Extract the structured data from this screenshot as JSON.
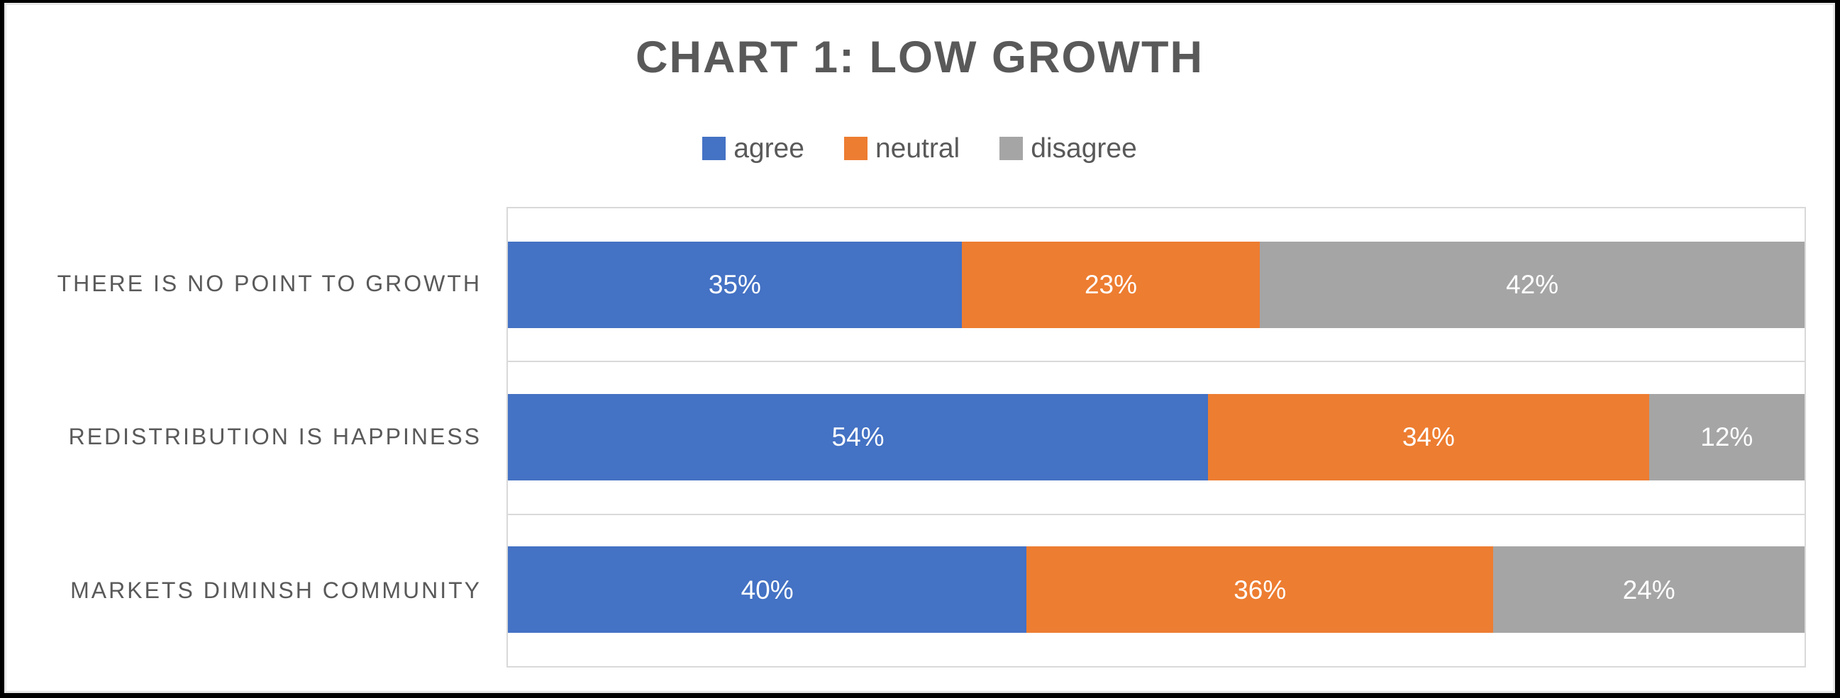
{
  "chart_data": {
    "type": "bar",
    "variant": "stacked-horizontal",
    "title": "CHART 1: LOW GROWTH",
    "categories": [
      "THERE IS NO POINT TO GROWTH",
      "REDISTRIBUTION IS HAPPINESS",
      "MARKETS DIMINSH COMMUNITY"
    ],
    "series": [
      {
        "name": "agree",
        "color": "#4472C4",
        "values": [
          35,
          54,
          40
        ],
        "labels": [
          "35%",
          "54%",
          "40%"
        ]
      },
      {
        "name": "neutral",
        "color": "#ED7D31",
        "values": [
          23,
          34,
          36
        ],
        "labels": [
          "23%",
          "34%",
          "36%"
        ]
      },
      {
        "name": "disagree",
        "color": "#A5A5A5",
        "values": [
          42,
          12,
          24
        ],
        "labels": [
          "42%",
          "12%",
          "24%"
        ]
      }
    ],
    "unit": "%",
    "xlim": [
      0,
      100
    ],
    "legend_position": "top-center",
    "grid": "category-separators-only",
    "value_axis_labels_visible": false
  },
  "colors": {
    "title_text": "#595959",
    "category_label_text": "#595959",
    "legend_text": "#595959",
    "data_label_text": "#FFFFFF",
    "plot_border": "#D9D9D9",
    "gridline": "#D9D9D9",
    "outer_frame": "#000000",
    "card_border": "#E7E7E7",
    "background": "#FFFFFF"
  }
}
